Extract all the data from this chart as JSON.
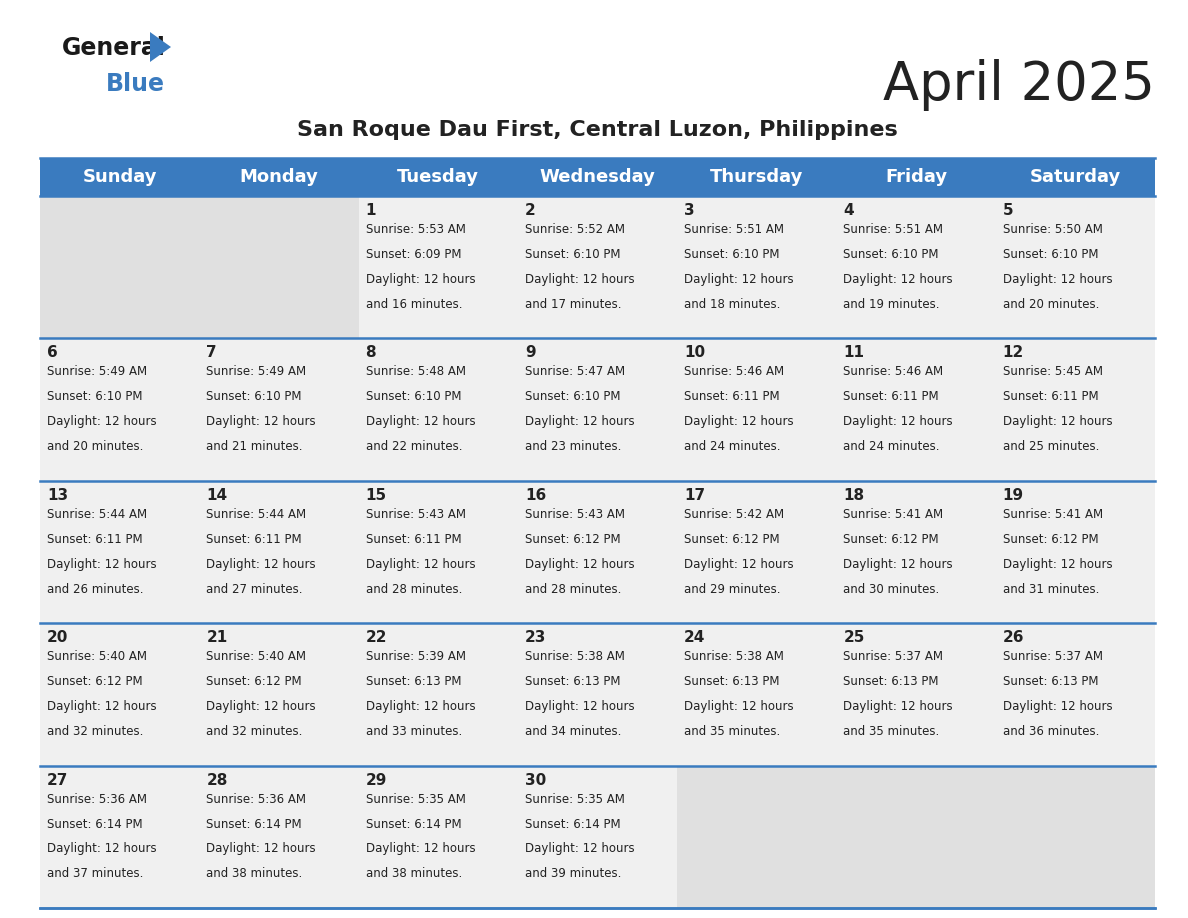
{
  "title": "April 2025",
  "subtitle": "San Roque Dau First, Central Luzon, Philippines",
  "header_bg_color": "#3a7bbf",
  "header_text_color": "#ffffff",
  "day_names": [
    "Sunday",
    "Monday",
    "Tuesday",
    "Wednesday",
    "Thursday",
    "Friday",
    "Saturday"
  ],
  "weeks": [
    [
      {
        "day": null,
        "sunrise": null,
        "sunset": null,
        "daylight": null
      },
      {
        "day": null,
        "sunrise": null,
        "sunset": null,
        "daylight": null
      },
      {
        "day": 1,
        "sunrise": "5:53 AM",
        "sunset": "6:09 PM",
        "daylight": "12 hours and 16 minutes"
      },
      {
        "day": 2,
        "sunrise": "5:52 AM",
        "sunset": "6:10 PM",
        "daylight": "12 hours and 17 minutes"
      },
      {
        "day": 3,
        "sunrise": "5:51 AM",
        "sunset": "6:10 PM",
        "daylight": "12 hours and 18 minutes"
      },
      {
        "day": 4,
        "sunrise": "5:51 AM",
        "sunset": "6:10 PM",
        "daylight": "12 hours and 19 minutes"
      },
      {
        "day": 5,
        "sunrise": "5:50 AM",
        "sunset": "6:10 PM",
        "daylight": "12 hours and 20 minutes"
      }
    ],
    [
      {
        "day": 6,
        "sunrise": "5:49 AM",
        "sunset": "6:10 PM",
        "daylight": "12 hours and 20 minutes"
      },
      {
        "day": 7,
        "sunrise": "5:49 AM",
        "sunset": "6:10 PM",
        "daylight": "12 hours and 21 minutes"
      },
      {
        "day": 8,
        "sunrise": "5:48 AM",
        "sunset": "6:10 PM",
        "daylight": "12 hours and 22 minutes"
      },
      {
        "day": 9,
        "sunrise": "5:47 AM",
        "sunset": "6:10 PM",
        "daylight": "12 hours and 23 minutes"
      },
      {
        "day": 10,
        "sunrise": "5:46 AM",
        "sunset": "6:11 PM",
        "daylight": "12 hours and 24 minutes"
      },
      {
        "day": 11,
        "sunrise": "5:46 AM",
        "sunset": "6:11 PM",
        "daylight": "12 hours and 24 minutes"
      },
      {
        "day": 12,
        "sunrise": "5:45 AM",
        "sunset": "6:11 PM",
        "daylight": "12 hours and 25 minutes"
      }
    ],
    [
      {
        "day": 13,
        "sunrise": "5:44 AM",
        "sunset": "6:11 PM",
        "daylight": "12 hours and 26 minutes"
      },
      {
        "day": 14,
        "sunrise": "5:44 AM",
        "sunset": "6:11 PM",
        "daylight": "12 hours and 27 minutes"
      },
      {
        "day": 15,
        "sunrise": "5:43 AM",
        "sunset": "6:11 PM",
        "daylight": "12 hours and 28 minutes"
      },
      {
        "day": 16,
        "sunrise": "5:43 AM",
        "sunset": "6:12 PM",
        "daylight": "12 hours and 28 minutes"
      },
      {
        "day": 17,
        "sunrise": "5:42 AM",
        "sunset": "6:12 PM",
        "daylight": "12 hours and 29 minutes"
      },
      {
        "day": 18,
        "sunrise": "5:41 AM",
        "sunset": "6:12 PM",
        "daylight": "12 hours and 30 minutes"
      },
      {
        "day": 19,
        "sunrise": "5:41 AM",
        "sunset": "6:12 PM",
        "daylight": "12 hours and 31 minutes"
      }
    ],
    [
      {
        "day": 20,
        "sunrise": "5:40 AM",
        "sunset": "6:12 PM",
        "daylight": "12 hours and 32 minutes"
      },
      {
        "day": 21,
        "sunrise": "5:40 AM",
        "sunset": "6:12 PM",
        "daylight": "12 hours and 32 minutes"
      },
      {
        "day": 22,
        "sunrise": "5:39 AM",
        "sunset": "6:13 PM",
        "daylight": "12 hours and 33 minutes"
      },
      {
        "day": 23,
        "sunrise": "5:38 AM",
        "sunset": "6:13 PM",
        "daylight": "12 hours and 34 minutes"
      },
      {
        "day": 24,
        "sunrise": "5:38 AM",
        "sunset": "6:13 PM",
        "daylight": "12 hours and 35 minutes"
      },
      {
        "day": 25,
        "sunrise": "5:37 AM",
        "sunset": "6:13 PM",
        "daylight": "12 hours and 35 minutes"
      },
      {
        "day": 26,
        "sunrise": "5:37 AM",
        "sunset": "6:13 PM",
        "daylight": "12 hours and 36 minutes"
      }
    ],
    [
      {
        "day": 27,
        "sunrise": "5:36 AM",
        "sunset": "6:14 PM",
        "daylight": "12 hours and 37 minutes"
      },
      {
        "day": 28,
        "sunrise": "5:36 AM",
        "sunset": "6:14 PM",
        "daylight": "12 hours and 38 minutes"
      },
      {
        "day": 29,
        "sunrise": "5:35 AM",
        "sunset": "6:14 PM",
        "daylight": "12 hours and 38 minutes"
      },
      {
        "day": 30,
        "sunrise": "5:35 AM",
        "sunset": "6:14 PM",
        "daylight": "12 hours and 39 minutes"
      },
      {
        "day": null,
        "sunrise": null,
        "sunset": null,
        "daylight": null
      },
      {
        "day": null,
        "sunrise": null,
        "sunset": null,
        "daylight": null
      },
      {
        "day": null,
        "sunrise": null,
        "sunset": null,
        "daylight": null
      }
    ]
  ],
  "grid_line_color": "#3a7bbf",
  "cell_bg_color": "#f0f0f0",
  "empty_cell_bg_color": "#e0e0e0",
  "white_bg": "#ffffff",
  "text_color": "#222222",
  "logo_general_color": "#1a1a1a",
  "logo_blue_color": "#3a7bbf",
  "title_fontsize": 38,
  "subtitle_fontsize": 16,
  "header_fontsize": 13,
  "day_num_fontsize": 11,
  "cell_text_fontsize": 8.5
}
